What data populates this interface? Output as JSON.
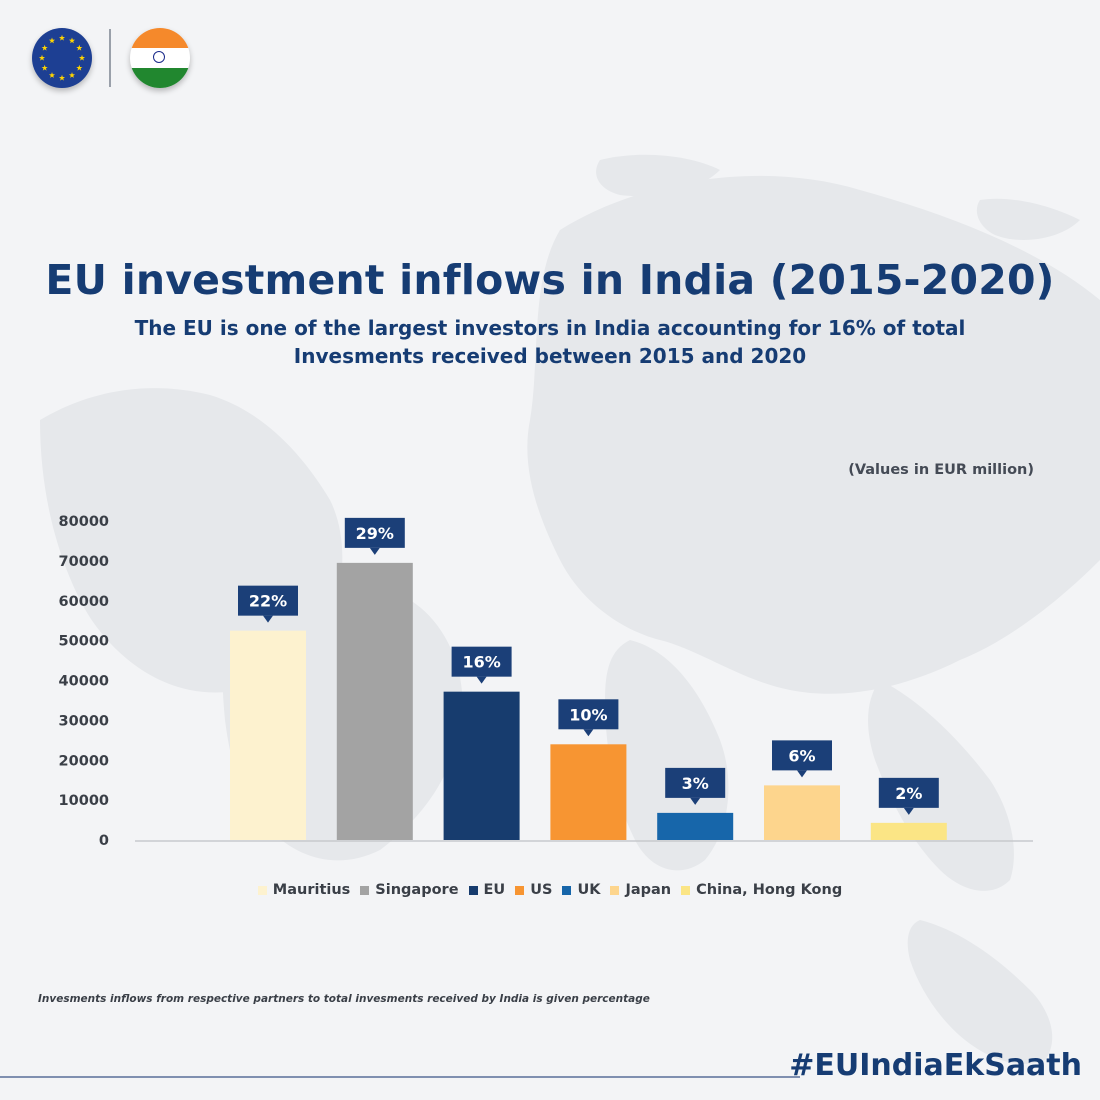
{
  "header": {
    "title": "EU investment inflows in India (2015-2020)",
    "subtitle_line1": "The EU is one of the largest investors in India accounting for 16% of total",
    "subtitle_line2": "Invesments received between 2015 and 2020"
  },
  "units_note": "(Values in EUR million)",
  "footnote": "Invesments inflows from respective partners to total invesments received by India is given percentage",
  "hashtag": "#EUIndiaEkSaath",
  "logos": {
    "left": "eu-flag-icon",
    "right": "india-flag-icon"
  },
  "colors": {
    "title": "#163c73",
    "callout": "#1b3f78"
  },
  "chart_data": {
    "type": "bar",
    "categories": [
      "Mauritius",
      "Singapore",
      "EU",
      "US",
      "UK",
      "Japan",
      "China, Hong Kong"
    ],
    "values": [
      52500,
      69500,
      37200,
      24000,
      6800,
      13700,
      4300
    ],
    "percent_labels": [
      "22%",
      "29%",
      "16%",
      "10%",
      "3%",
      "6%",
      "2%"
    ],
    "colors": [
      "#fdf2cf",
      "#a3a3a3",
      "#173c6e",
      "#f79532",
      "#1766aa",
      "#fdd58d",
      "#fbe585"
    ],
    "ylim": [
      0,
      80000
    ],
    "yticks": [
      "80000",
      "70000",
      "60000",
      "50000",
      "40000",
      "30000",
      "20000",
      "10000",
      "0"
    ],
    "grid": false,
    "legend": "bottom"
  }
}
